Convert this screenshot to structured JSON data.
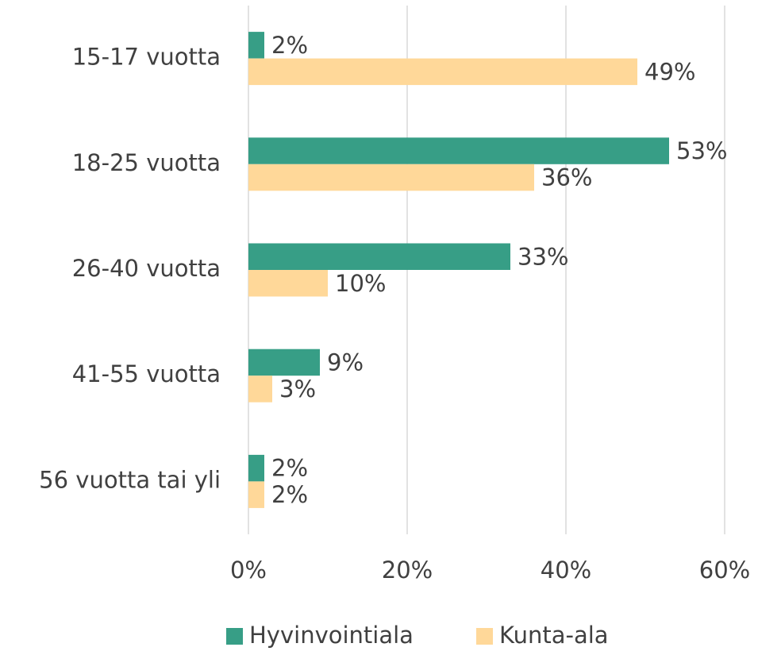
{
  "chart_data": {
    "type": "barh",
    "categories": [
      "15-17 vuotta",
      "18-25 vuotta",
      "26-40 vuotta",
      "41-55 vuotta",
      "56 vuotta tai yli"
    ],
    "series": [
      {
        "name": "Hyvinvointiala",
        "color": "#379e86",
        "values": [
          2,
          53,
          33,
          9,
          2
        ],
        "value_labels": [
          "2%",
          "53%",
          "33%",
          "9%",
          "2%"
        ]
      },
      {
        "name": "Kunta-ala",
        "color": "#ffd899",
        "values": [
          49,
          36,
          10,
          3,
          2
        ],
        "value_labels": [
          "49%",
          "36%",
          "10%",
          "3%",
          "2%"
        ]
      }
    ],
    "xlim": [
      0,
      60
    ],
    "xticks": [
      {
        "value": 0,
        "label": "0%"
      },
      {
        "value": 20,
        "label": "20%"
      },
      {
        "value": 40,
        "label": "40%"
      },
      {
        "value": 60,
        "label": "60%"
      }
    ],
    "grid": true,
    "legend": "bottom"
  }
}
